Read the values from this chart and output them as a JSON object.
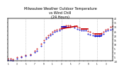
{
  "title": "Milwaukee Weather Outdoor Temperature\nvs Wind Chill\n(24 Hours)",
  "title_fontsize": 3.5,
  "outdoor_color": "#cc0000",
  "windchill_color": "#0000cc",
  "background_color": "#ffffff",
  "grid_color": "#888888",
  "ylim": [
    -10,
    40
  ],
  "xlim": [
    0,
    47
  ],
  "outdoor_dots": [
    [
      0,
      -7
    ],
    [
      1,
      -7
    ],
    [
      2,
      -8
    ],
    [
      4,
      -6
    ],
    [
      6,
      -5
    ],
    [
      8,
      -3
    ],
    [
      10,
      -2
    ],
    [
      12,
      2
    ],
    [
      13,
      4
    ],
    [
      15,
      10
    ],
    [
      16,
      14
    ],
    [
      17,
      18
    ],
    [
      18,
      20
    ],
    [
      19,
      22
    ],
    [
      20,
      24
    ],
    [
      21,
      26
    ],
    [
      22,
      27
    ],
    [
      23,
      28
    ],
    [
      24,
      30
    ],
    [
      25,
      31
    ],
    [
      26,
      32
    ],
    [
      27,
      32
    ],
    [
      28,
      32
    ],
    [
      30,
      31
    ],
    [
      31,
      30
    ],
    [
      32,
      29
    ],
    [
      33,
      28
    ],
    [
      34,
      28
    ],
    [
      35,
      28
    ],
    [
      36,
      25
    ],
    [
      37,
      24
    ],
    [
      38,
      23
    ],
    [
      39,
      22
    ],
    [
      40,
      22
    ],
    [
      41,
      22
    ],
    [
      42,
      23
    ],
    [
      43,
      24
    ],
    [
      44,
      27
    ],
    [
      45,
      28
    ],
    [
      46,
      30
    ],
    [
      47,
      31
    ]
  ],
  "windchill_dots": [
    [
      0,
      -9
    ],
    [
      1,
      -9
    ],
    [
      2,
      -10
    ],
    [
      4,
      -7
    ],
    [
      6,
      -6
    ],
    [
      8,
      -4
    ],
    [
      10,
      -3
    ],
    [
      12,
      0
    ],
    [
      13,
      2
    ],
    [
      15,
      8
    ],
    [
      16,
      12
    ],
    [
      17,
      16
    ],
    [
      18,
      18
    ],
    [
      19,
      20
    ],
    [
      20,
      22
    ],
    [
      21,
      24
    ],
    [
      22,
      25
    ],
    [
      23,
      26
    ],
    [
      24,
      28
    ],
    [
      25,
      29
    ],
    [
      26,
      30
    ],
    [
      27,
      30
    ],
    [
      28,
      30
    ],
    [
      30,
      29
    ],
    [
      31,
      28
    ],
    [
      32,
      27
    ],
    [
      33,
      26
    ],
    [
      34,
      26
    ],
    [
      35,
      26
    ],
    [
      36,
      22
    ],
    [
      37,
      21
    ],
    [
      38,
      20
    ],
    [
      39,
      19
    ],
    [
      40,
      19
    ],
    [
      41,
      19
    ],
    [
      42,
      21
    ],
    [
      43,
      22
    ],
    [
      44,
      25
    ],
    [
      45,
      26
    ],
    [
      46,
      27
    ],
    [
      47,
      28
    ]
  ],
  "outdoor_segments": [
    [
      [
        24,
        28
      ],
      [
        31,
        31
      ]
    ],
    [
      [
        33,
        28
      ],
      [
        36,
        28
      ]
    ],
    [
      [
        39,
        22
      ],
      [
        42,
        22
      ]
    ]
  ],
  "windchill_segments": [
    [
      [
        24,
        30
      ],
      [
        26,
        30
      ]
    ],
    [
      [
        39,
        19
      ],
      [
        42,
        19
      ]
    ]
  ],
  "vgrid_x": [
    8,
    16,
    24,
    32,
    40
  ],
  "yticks": [
    -10,
    -5,
    0,
    5,
    10,
    15,
    20,
    25,
    30,
    35,
    40
  ],
  "xtick_positions": [
    0,
    2,
    4,
    6,
    8,
    10,
    12,
    14,
    16,
    18,
    20,
    22,
    24,
    26,
    28,
    30,
    32,
    34,
    36,
    38,
    40,
    42,
    44,
    46
  ],
  "xtick_labels": [
    "1",
    "",
    "3",
    "",
    "5",
    "",
    "7",
    "",
    "9",
    "",
    "1",
    "",
    "3",
    "",
    "5",
    "",
    "7",
    "",
    "9",
    "",
    "1",
    "",
    "3",
    ""
  ]
}
